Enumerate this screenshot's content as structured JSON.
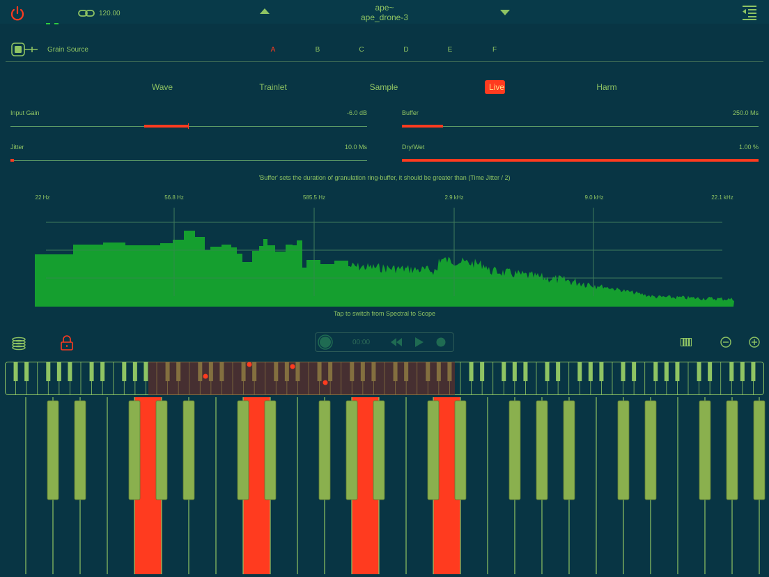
{
  "header": {
    "tempo": "120.00",
    "patch_name": "ape~",
    "preset_name": "ape_drone-3"
  },
  "grain_source": {
    "label": "Grain Source",
    "tabs": [
      "A",
      "B",
      "C",
      "D",
      "E",
      "F"
    ],
    "selected_tab": "A"
  },
  "modes": {
    "items": [
      "Wave",
      "Trainlet",
      "Sample",
      "Live",
      "Harm"
    ],
    "active": "Live"
  },
  "params": {
    "input_gain": {
      "label": "Input Gain",
      "value": "-6.0 dB"
    },
    "buffer": {
      "label": "Buffer",
      "value": "250.0 Ms"
    },
    "jitter": {
      "label": "Jitter",
      "value": "10.0 Ms"
    },
    "dry_wet": {
      "label": "Dry/Wet",
      "value": "1.00 %"
    }
  },
  "hint": "'Buffer' sets the duration of granulation ring-buffer,  it should be greater than (Time Jitter / 2)",
  "spectrum": {
    "freq_labels": [
      "22 Hz",
      "56.8 Hz",
      "585.5 Hz",
      "2.9 kHz",
      "9.0 kHz",
      "22.1 kHz"
    ],
    "hint": "Tap to switch from Spectral to Scope"
  },
  "transport": {
    "time": "00:00"
  },
  "colors": {
    "background": "#083544",
    "accent_green": "#8fc463",
    "active_red": "#ff3b1f",
    "spectrum_green": "#17a82e"
  }
}
